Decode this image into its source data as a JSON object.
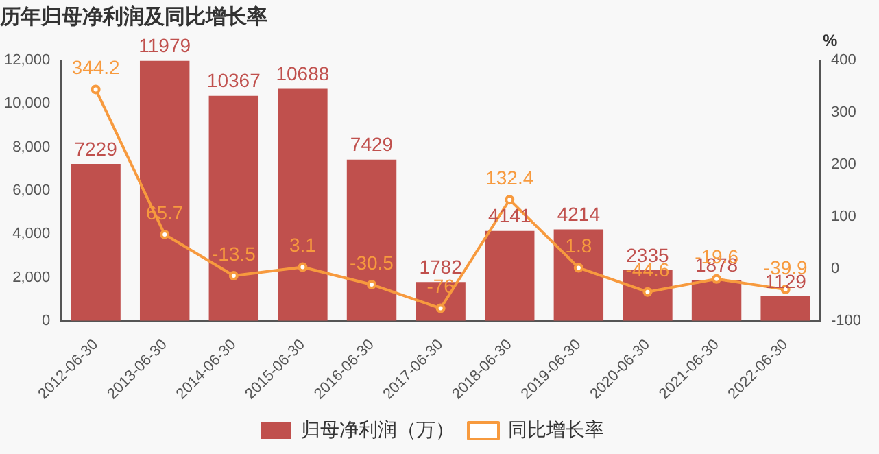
{
  "chart_data": {
    "type": "bar",
    "title": "历年归母净利润及同比增长率",
    "y2label": "%",
    "categories": [
      "2012-06-30",
      "2013-06-30",
      "2014-06-30",
      "2015-06-30",
      "2016-06-30",
      "2017-06-30",
      "2018-06-30",
      "2019-06-30",
      "2020-06-30",
      "2021-06-30",
      "2022-06-30"
    ],
    "series": [
      {
        "name": "归母净利润（万）",
        "color": "#c0504d",
        "values": [
          7229,
          11979,
          10367,
          10688,
          7429,
          1782,
          4141,
          4214,
          2335,
          1878,
          1129
        ]
      },
      {
        "name": "同比增长率",
        "type": "line",
        "axis": "y2",
        "color": "#f79a3e",
        "values": [
          344.2,
          65.7,
          -13.5,
          3.1,
          -30.5,
          -76,
          132.4,
          1.8,
          -44.6,
          -19.6,
          -39.9
        ]
      }
    ],
    "ylim": [
      0,
      12000
    ],
    "yticks": [
      0,
      {
        "value": 2000,
        "label": "2,000"
      },
      {
        "value": 4000,
        "label": "4,000"
      },
      {
        "value": 6000,
        "label": "6,000"
      },
      {
        "value": 8000,
        "label": "8,000"
      },
      {
        "value": 10000,
        "label": "10,000"
      },
      {
        "value": 12000,
        "label": "12,000"
      }
    ],
    "y2lim": [
      -100,
      400
    ],
    "y2ticks": [
      -100,
      0,
      100,
      200,
      300,
      400
    ],
    "data_labels": true,
    "legend": "bottom",
    "grid": false,
    "marker": "circle",
    "line_style": "solid"
  }
}
